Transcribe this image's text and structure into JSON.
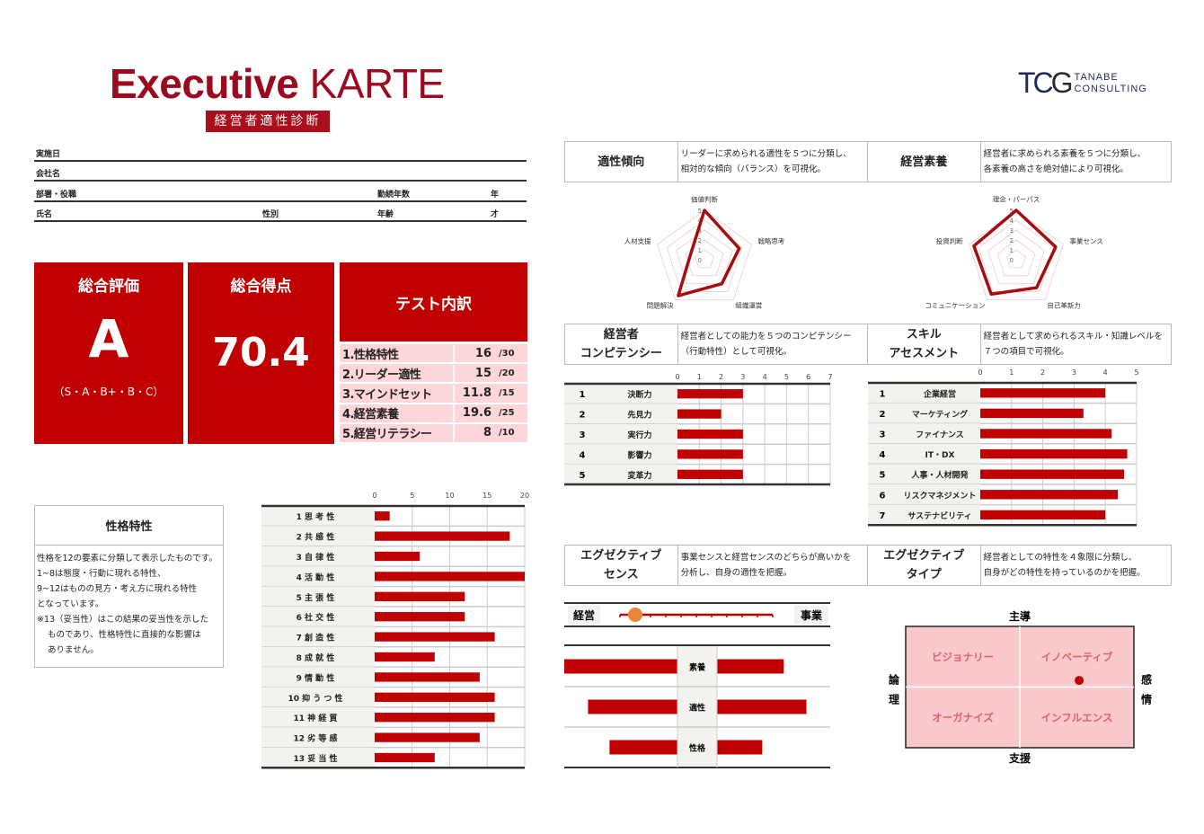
{
  "header": {
    "title_bold": "Executive",
    "title_light": "KARTE",
    "subtitle": "経営者適性診断",
    "logo": {
      "mark": "TCG",
      "line1": "TANABE",
      "line2": "CONSULTING"
    }
  },
  "info": {
    "date_label": "実施日",
    "company_label": "会社名",
    "dept_label": "部署・役職",
    "tenure_label": "勤続年数",
    "tenure_unit": "年",
    "name_label": "氏名",
    "gender_label": "性別",
    "age_label": "年齢",
    "age_unit": "才"
  },
  "summary": {
    "overall_label": "総合評価",
    "overall_grade": "A",
    "grade_scale": "（S・A・B+・B・C）",
    "score_label": "総合得点",
    "score": "70.4",
    "breakdown_label": "テスト内訳",
    "breakdown": [
      {
        "label": "1.性格特性",
        "value": "16",
        "max": "/30"
      },
      {
        "label": "2.リーダー適性",
        "value": "15",
        "max": "/20"
      },
      {
        "label": "3.マインドセット",
        "value": "11.8",
        "max": "/15"
      },
      {
        "label": "4.経営素養",
        "value": "19.6",
        "max": "/25"
      },
      {
        "label": "5.経営リテラシー",
        "value": "8",
        "max": "/10"
      }
    ]
  },
  "personality": {
    "title": "性格特性",
    "desc": [
      "性格を12の要素に分類して表示したものです。",
      "1~8は態度・行動に現れる特性、",
      "9~12はものの見方・考え方に現れる特性",
      "となっています。",
      "※13（妥当性）はこの結果の妥当性を示した",
      "ものであり、性格特性に直接的な影響は",
      "ありません。"
    ]
  },
  "sections": {
    "aptitude": {
      "title": "適性傾向",
      "desc1": "リーダーに求められる適性を５つに分類し、",
      "desc2": "相対的な傾向（バランス）を可視化。"
    },
    "literacy": {
      "title": "経営素養",
      "desc1": "経営者に求められる素養を５つに分類し、",
      "desc2": "各素養の高さを絶対値により可視化。"
    },
    "competency": {
      "title1": "経営者",
      "title2": "コンピテンシー",
      "desc1": "経営者としての能力を５つのコンピテンシー",
      "desc2": "（行動特性）として可視化。"
    },
    "skill": {
      "title1": "スキル",
      "title2": "アセスメント",
      "desc1": "経営者として求められるスキル・知識レベルを",
      "desc2": "７つの項目で可視化。"
    },
    "sense": {
      "title1": "エグゼクティブ",
      "title2": "センス",
      "desc1": "事業センスと経営センスのどちらが高いかを",
      "desc2": "分析し、自身の適性を把握。"
    },
    "type": {
      "title1": "エグゼクティブ",
      "title2": "タイプ",
      "desc1": "経営者としての特性を４象限に分類し、",
      "desc2": "自身がどの特性を持っているのかを把握。"
    }
  },
  "colors": {
    "accent": "#c00000",
    "title": "#9b0a1e",
    "pink": "#fcd6d8",
    "quadrant": "#f9c9cc",
    "slider_knob": "#e8873a"
  },
  "chart_data": [
    {
      "id": "personality",
      "type": "bar",
      "orientation": "horizontal",
      "categories": [
        "1 思 考 性",
        "2 共 感 性",
        "3 自 律 性",
        "4 活 動 性",
        "5 主 張 性",
        "6 社 交 性",
        "7 創 造 性",
        "8 成 就 性",
        "9 情 動 性",
        "10 抑 う つ 性",
        "11 神 経 質",
        "12 劣 等 感",
        "13 妥 当 性"
      ],
      "values": [
        2,
        18,
        6,
        20,
        12,
        12,
        16,
        8,
        14,
        16,
        16,
        14,
        8
      ],
      "xlim": [
        0,
        20
      ],
      "xticks": [
        0,
        5,
        10,
        15,
        20
      ],
      "grid": true
    },
    {
      "id": "aptitude",
      "type": "radar",
      "categories": [
        "価値判断",
        "戦略思考",
        "組織運営",
        "問題解決",
        "人材支援"
      ],
      "values": [
        5,
        3.7,
        3,
        4.5,
        1.5
      ],
      "rlim": [
        0,
        5
      ],
      "rticks": [
        0,
        1,
        2,
        3,
        4,
        5
      ]
    },
    {
      "id": "literacy",
      "type": "radar",
      "categories": [
        "理念・パーパス",
        "事業センス",
        "自己革新力",
        "コミュニケーション",
        "投資判断"
      ],
      "values": [
        5,
        4.2,
        3.5,
        4.3,
        4.5
      ],
      "rlim": [
        0,
        5
      ],
      "rticks": [
        0,
        1,
        2,
        3,
        4,
        5
      ]
    },
    {
      "id": "competency",
      "type": "bar",
      "orientation": "horizontal",
      "numbers": [
        "1",
        "2",
        "3",
        "4",
        "5"
      ],
      "categories": [
        "決断力",
        "先見力",
        "実行力",
        "影響力",
        "変革力"
      ],
      "values": [
        3,
        2,
        3,
        3,
        3
      ],
      "xlim": [
        0,
        7
      ],
      "xticks": [
        0,
        1,
        2,
        3,
        4,
        5,
        6,
        7
      ],
      "grid": true
    },
    {
      "id": "skill",
      "type": "bar",
      "orientation": "horizontal",
      "numbers": [
        "1",
        "2",
        "3",
        "4",
        "5",
        "6",
        "7"
      ],
      "categories": [
        "企業経営",
        "マーケティング",
        "ファイナンス",
        "IT・DX",
        "人事・人材開発",
        "リスクマネジメント",
        "サステナビリティ"
      ],
      "values": [
        4.0,
        3.3,
        4.2,
        4.7,
        4.6,
        4.4,
        4.0
      ],
      "xlim": [
        0,
        5
      ],
      "xticks": [
        0,
        1,
        2,
        3,
        4,
        5
      ],
      "grid": true
    },
    {
      "id": "sense_slider",
      "type": "scale",
      "left_label": "経営",
      "right_label": "事業",
      "value": 0.1
    },
    {
      "id": "sense_butterfly",
      "type": "bar",
      "orientation": "diverging",
      "categories": [
        "素養",
        "適性",
        "性格"
      ],
      "left_values": [
        1.0,
        0.79,
        0.6
      ],
      "right_values": [
        0.59,
        0.79,
        0.4
      ]
    },
    {
      "id": "type_quadrant",
      "type": "scatter",
      "top_label": "主導",
      "bottom_label": "支援",
      "left_label": "論理",
      "right_label": "感情",
      "quadrants": [
        "ビジョナリー",
        "イノベーティブ",
        "オーガナイズ",
        "インフルエンス"
      ],
      "point": {
        "x": 0.52,
        "y": 0.11
      },
      "xlim": [
        -1,
        1
      ],
      "ylim": [
        -1,
        1
      ]
    }
  ]
}
